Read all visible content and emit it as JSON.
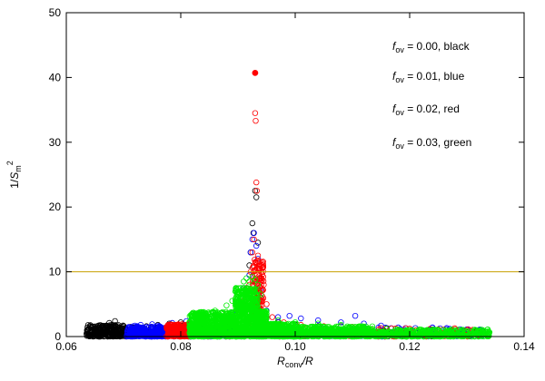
{
  "chart_data": {
    "type": "scatter",
    "title": "",
    "xlabel": {
      "main": "R",
      "sub": "conv",
      "tail": "/R"
    },
    "ylabel": {
      "pre": "1/",
      "main": "S",
      "sub": "m",
      "sup": "2"
    },
    "xlim": [
      0.06,
      0.14
    ],
    "ylim": [
      0,
      50
    ],
    "x_ticks": [
      "0.06",
      "0.08",
      "0.10",
      "0.12",
      "0.14"
    ],
    "y_ticks": [
      "0",
      "10",
      "20",
      "30",
      "40",
      "50"
    ],
    "x_tick_values": [
      0.06,
      0.08,
      0.1,
      0.12,
      0.14
    ],
    "y_tick_values": [
      0,
      10,
      20,
      30,
      40,
      50
    ],
    "grid": false,
    "hline": {
      "y": 10,
      "color": "#c8a000"
    },
    "legend_entries": [
      {
        "f": "f",
        "sub": "ov",
        "text": " = 0.00, black"
      },
      {
        "f": "f",
        "sub": "ov",
        "text": " = 0.01, blue"
      },
      {
        "f": "f",
        "sub": "ov",
        "text": " = 0.02, red"
      },
      {
        "f": "f",
        "sub": "ov",
        "text": " = 0.03, green"
      }
    ],
    "series": [
      {
        "color": "#000000",
        "hollow_points": [
          [
            0.0645,
            0.3
          ],
          [
            0.065,
            0.6
          ],
          [
            0.0655,
            0.9
          ],
          [
            0.066,
            1.2
          ],
          [
            0.0665,
            1.4
          ],
          [
            0.067,
            1.7
          ],
          [
            0.0675,
            2.1
          ],
          [
            0.068,
            1.8
          ],
          [
            0.0685,
            2.4
          ],
          [
            0.069,
            1.6
          ],
          [
            0.0695,
            1.2
          ],
          [
            0.0705,
            1.0
          ],
          [
            0.072,
            1.4
          ],
          [
            0.074,
            1.6
          ],
          [
            0.076,
            1.8
          ],
          [
            0.078,
            2.0
          ],
          [
            0.08,
            2.2
          ],
          [
            0.082,
            2.6
          ],
          [
            0.084,
            3.0
          ],
          [
            0.086,
            3.3
          ],
          [
            0.088,
            3.5
          ],
          [
            0.09,
            4.5
          ],
          [
            0.091,
            5.0
          ],
          [
            0.0915,
            7.5
          ],
          [
            0.092,
            11.0
          ],
          [
            0.0922,
            13.0
          ],
          [
            0.0925,
            17.5
          ],
          [
            0.0927,
            16.0
          ],
          [
            0.093,
            22.5
          ],
          [
            0.0932,
            21.5
          ],
          [
            0.0935,
            14.5
          ],
          [
            0.0938,
            9.0
          ],
          [
            0.094,
            6.0
          ],
          [
            0.095,
            3.0
          ],
          [
            0.097,
            2.2
          ],
          [
            0.1,
            1.8
          ],
          [
            0.104,
            1.6
          ],
          [
            0.108,
            1.6
          ],
          [
            0.112,
            1.5
          ],
          [
            0.116,
            1.3
          ],
          [
            0.12,
            1.2
          ],
          [
            0.124,
            1.0
          ],
          [
            0.128,
            0.9
          ],
          [
            0.132,
            0.8
          ]
        ],
        "bands": [
          {
            "from": 0.0635,
            "to": 0.0705,
            "min": 0,
            "max": 1.8,
            "count": 260
          },
          {
            "from": 0.0705,
            "to": 0.09,
            "min": 0,
            "max": 1.7,
            "count": 160
          },
          {
            "from": 0.09,
            "to": 0.133,
            "min": 0,
            "max": 1.0,
            "count": 120
          }
        ]
      },
      {
        "color": "#0000ff",
        "hollow_points": [
          [
            0.071,
            1.4
          ],
          [
            0.072,
            1.7
          ],
          [
            0.073,
            1.8
          ],
          [
            0.074,
            1.5
          ],
          [
            0.075,
            1.9
          ],
          [
            0.076,
            1.7
          ],
          [
            0.0785,
            2.1
          ],
          [
            0.081,
            2.4
          ],
          [
            0.084,
            2.8
          ],
          [
            0.087,
            3.1
          ],
          [
            0.089,
            3.7
          ],
          [
            0.0905,
            5.0
          ],
          [
            0.091,
            7.5
          ],
          [
            0.0915,
            7.0
          ],
          [
            0.092,
            9.5
          ],
          [
            0.0922,
            13.0
          ],
          [
            0.0925,
            15.0
          ],
          [
            0.0928,
            16.0
          ],
          [
            0.0932,
            14.0
          ],
          [
            0.0935,
            12.0
          ],
          [
            0.094,
            7.0
          ],
          [
            0.095,
            4.0
          ],
          [
            0.097,
            3.0
          ],
          [
            0.099,
            3.2
          ],
          [
            0.101,
            2.8
          ],
          [
            0.104,
            2.5
          ],
          [
            0.108,
            2.2
          ],
          [
            0.1105,
            3.2
          ],
          [
            0.112,
            2.0
          ],
          [
            0.115,
            1.7
          ],
          [
            0.118,
            1.4
          ],
          [
            0.121,
            1.3
          ],
          [
            0.124,
            1.4
          ],
          [
            0.127,
            1.2
          ],
          [
            0.13,
            1.1
          ],
          [
            0.132,
            1.0
          ]
        ],
        "bands": [
          {
            "from": 0.0705,
            "to": 0.0775,
            "min": 0,
            "max": 1.6,
            "count": 260
          },
          {
            "from": 0.0775,
            "to": 0.09,
            "min": 0,
            "max": 1.8,
            "count": 120
          },
          {
            "from": 0.095,
            "to": 0.133,
            "min": 0,
            "max": 1.4,
            "count": 140
          }
        ]
      },
      {
        "color": "#ff0000",
        "filled_points": [
          [
            0.093,
            40.7
          ]
        ],
        "hollow_points": [
          [
            0.0775,
            1.5
          ],
          [
            0.079,
            1.7
          ],
          [
            0.0805,
            1.6
          ],
          [
            0.082,
            2.0
          ],
          [
            0.084,
            2.3
          ],
          [
            0.086,
            2.6
          ],
          [
            0.088,
            3.0
          ],
          [
            0.09,
            4.0
          ],
          [
            0.091,
            5.5
          ],
          [
            0.0915,
            6.5
          ],
          [
            0.092,
            8.0
          ],
          [
            0.0922,
            10.0
          ],
          [
            0.0925,
            13.0
          ],
          [
            0.0928,
            15.0
          ],
          [
            0.093,
            34.5
          ],
          [
            0.0931,
            33.3
          ],
          [
            0.0932,
            23.8
          ],
          [
            0.0933,
            22.5
          ],
          [
            0.0935,
            12.5
          ],
          [
            0.0938,
            10.5
          ],
          [
            0.094,
            8.5
          ],
          [
            0.0945,
            8.0
          ],
          [
            0.095,
            5.0
          ],
          [
            0.096,
            3.0
          ],
          [
            0.098,
            2.2
          ],
          [
            0.101,
            1.8
          ],
          [
            0.105,
            1.6
          ],
          [
            0.11,
            1.5
          ],
          [
            0.115,
            1.3
          ],
          [
            0.12,
            1.2
          ],
          [
            0.125,
            1.1
          ],
          [
            0.13,
            1.0
          ]
        ],
        "bands": [
          {
            "from": 0.0775,
            "to": 0.0815,
            "min": 0,
            "max": 1.9,
            "count": 200
          },
          {
            "from": 0.0925,
            "to": 0.0945,
            "min": 1.5,
            "max": 12.0,
            "count": 160
          },
          {
            "from": 0.095,
            "to": 0.133,
            "min": 0,
            "max": 1.3,
            "count": 120
          }
        ]
      },
      {
        "color": "#00ee00",
        "filled_points": [],
        "hollow_points": [
          [
            0.082,
            3.5
          ],
          [
            0.084,
            3.8
          ],
          [
            0.086,
            4.0
          ],
          [
            0.088,
            4.8
          ],
          [
            0.089,
            5.5
          ],
          [
            0.09,
            6.5
          ],
          [
            0.0905,
            7.5
          ],
          [
            0.091,
            8.5
          ],
          [
            0.0915,
            9.0
          ],
          [
            0.092,
            8.5
          ],
          [
            0.0925,
            9.2
          ],
          [
            0.093,
            8.8
          ],
          [
            0.0935,
            8.0
          ],
          [
            0.094,
            6.5
          ],
          [
            0.095,
            3.5
          ],
          [
            0.097,
            2.5
          ],
          [
            0.1,
            2.2
          ],
          [
            0.104,
            2.0
          ],
          [
            0.108,
            1.8
          ],
          [
            0.112,
            1.5
          ],
          [
            0.116,
            1.2
          ],
          [
            0.12,
            1.0
          ],
          [
            0.125,
            1.0
          ],
          [
            0.13,
            0.8
          ]
        ],
        "bands": [
          {
            "from": 0.0815,
            "to": 0.0895,
            "min": 0,
            "max": 3.8,
            "count": 700
          },
          {
            "from": 0.0895,
            "to": 0.0935,
            "min": 0,
            "max": 7.5,
            "count": 600
          },
          {
            "from": 0.0935,
            "to": 0.095,
            "min": 0,
            "max": 4.0,
            "count": 200
          },
          {
            "from": 0.095,
            "to": 0.1005,
            "min": 0,
            "max": 2.0,
            "count": 400
          },
          {
            "from": 0.1005,
            "to": 0.1135,
            "min": 0,
            "max": 1.6,
            "count": 500
          },
          {
            "from": 0.1135,
            "to": 0.1175,
            "min": 0,
            "max": 0.8,
            "count": 80
          },
          {
            "from": 0.1175,
            "to": 0.134,
            "min": 0,
            "max": 1.1,
            "count": 320
          }
        ]
      }
    ]
  }
}
